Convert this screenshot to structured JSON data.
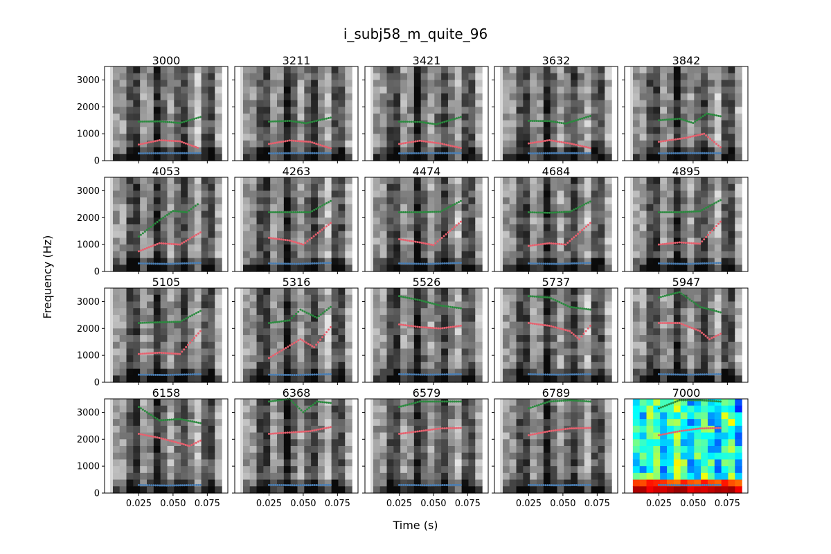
{
  "figure": {
    "title": "i_subj58_m_quite_96",
    "xlabel": "Time (s)",
    "ylabel": "Frequency (Hz)"
  },
  "chart_data": {
    "type": "scatter",
    "description_of_axes": "shared",
    "xlim": [
      0.0,
      0.09
    ],
    "ylim": [
      0,
      3500
    ],
    "xticks": [
      "0.025",
      "0.050",
      "0.075"
    ],
    "yticks": [
      "0",
      "1000",
      "2000",
      "3000"
    ],
    "series_colors": {
      "F1": "#4a7fb5",
      "F2": "#e8606e",
      "F3": "#2a8a3e"
    },
    "background_colormap_last_panel": "jet",
    "panels": [
      {
        "title": "3000",
        "F1": [
          [
            0.025,
            270
          ],
          [
            0.045,
            280
          ],
          [
            0.07,
            280
          ]
        ],
        "F2": [
          [
            0.025,
            600
          ],
          [
            0.04,
            760
          ],
          [
            0.055,
            720
          ],
          [
            0.068,
            480
          ]
        ],
        "F3": [
          [
            0.025,
            1450
          ],
          [
            0.04,
            1460
          ],
          [
            0.055,
            1400
          ],
          [
            0.07,
            1620
          ]
        ]
      },
      {
        "title": "3211",
        "F1": [
          [
            0.025,
            270
          ],
          [
            0.045,
            280
          ],
          [
            0.07,
            280
          ]
        ],
        "F2": [
          [
            0.025,
            620
          ],
          [
            0.04,
            750
          ],
          [
            0.055,
            700
          ],
          [
            0.07,
            460
          ]
        ],
        "F3": [
          [
            0.025,
            1450
          ],
          [
            0.04,
            1480
          ],
          [
            0.052,
            1390
          ],
          [
            0.07,
            1600
          ]
        ]
      },
      {
        "title": "3421",
        "F1": [
          [
            0.025,
            270
          ],
          [
            0.045,
            280
          ],
          [
            0.07,
            280
          ]
        ],
        "F2": [
          [
            0.025,
            620
          ],
          [
            0.04,
            740
          ],
          [
            0.055,
            640
          ],
          [
            0.07,
            470
          ]
        ],
        "F3": [
          [
            0.025,
            1450
          ],
          [
            0.04,
            1440
          ],
          [
            0.052,
            1350
          ],
          [
            0.07,
            1620
          ]
        ]
      },
      {
        "title": "3632",
        "F1": [
          [
            0.025,
            270
          ],
          [
            0.045,
            280
          ],
          [
            0.07,
            280
          ]
        ],
        "F2": [
          [
            0.025,
            640
          ],
          [
            0.04,
            760
          ],
          [
            0.055,
            640
          ],
          [
            0.07,
            470
          ]
        ],
        "F3": [
          [
            0.025,
            1480
          ],
          [
            0.04,
            1470
          ],
          [
            0.052,
            1380
          ],
          [
            0.07,
            1660
          ]
        ]
      },
      {
        "title": "3842",
        "F1": [
          [
            0.025,
            270
          ],
          [
            0.045,
            280
          ],
          [
            0.07,
            280
          ]
        ],
        "F2": [
          [
            0.025,
            700
          ],
          [
            0.045,
            850
          ],
          [
            0.058,
            1000
          ],
          [
            0.07,
            500
          ]
        ],
        "F3": [
          [
            0.025,
            1500
          ],
          [
            0.04,
            1560
          ],
          [
            0.05,
            1400
          ],
          [
            0.06,
            1750
          ],
          [
            0.07,
            1650
          ]
        ]
      },
      {
        "title": "4053",
        "F1": [
          [
            0.025,
            300
          ],
          [
            0.045,
            280
          ],
          [
            0.07,
            320
          ]
        ],
        "F2": [
          [
            0.025,
            750
          ],
          [
            0.04,
            1050
          ],
          [
            0.055,
            1000
          ],
          [
            0.07,
            1450
          ]
        ],
        "F3": [
          [
            0.025,
            1300
          ],
          [
            0.04,
            1900
          ],
          [
            0.05,
            2250
          ],
          [
            0.06,
            2200
          ],
          [
            0.068,
            2500
          ]
        ]
      },
      {
        "title": "4263",
        "F1": [
          [
            0.025,
            300
          ],
          [
            0.045,
            280
          ],
          [
            0.07,
            320
          ]
        ],
        "F2": [
          [
            0.025,
            1250
          ],
          [
            0.04,
            1150
          ],
          [
            0.05,
            1000
          ],
          [
            0.07,
            1800
          ]
        ],
        "F3": [
          [
            0.025,
            2200
          ],
          [
            0.04,
            2200
          ],
          [
            0.055,
            2200
          ],
          [
            0.07,
            2620
          ]
        ]
      },
      {
        "title": "4474",
        "F1": [
          [
            0.025,
            300
          ],
          [
            0.045,
            280
          ],
          [
            0.07,
            320
          ]
        ],
        "F2": [
          [
            0.025,
            1200
          ],
          [
            0.04,
            1080
          ],
          [
            0.05,
            980
          ],
          [
            0.07,
            1850
          ]
        ],
        "F3": [
          [
            0.025,
            2200
          ],
          [
            0.04,
            2200
          ],
          [
            0.055,
            2220
          ],
          [
            0.07,
            2620
          ]
        ]
      },
      {
        "title": "4684",
        "F1": [
          [
            0.025,
            300
          ],
          [
            0.045,
            280
          ],
          [
            0.07,
            320
          ]
        ],
        "F2": [
          [
            0.025,
            950
          ],
          [
            0.04,
            1050
          ],
          [
            0.052,
            1000
          ],
          [
            0.07,
            1800
          ]
        ],
        "F3": [
          [
            0.025,
            2200
          ],
          [
            0.04,
            2180
          ],
          [
            0.055,
            2220
          ],
          [
            0.07,
            2600
          ]
        ]
      },
      {
        "title": "4895",
        "F1": [
          [
            0.025,
            300
          ],
          [
            0.045,
            280
          ],
          [
            0.07,
            320
          ]
        ],
        "F2": [
          [
            0.025,
            1000
          ],
          [
            0.04,
            1080
          ],
          [
            0.055,
            1030
          ],
          [
            0.07,
            1850
          ]
        ],
        "F3": [
          [
            0.025,
            2200
          ],
          [
            0.04,
            2200
          ],
          [
            0.055,
            2240
          ],
          [
            0.07,
            2650
          ]
        ]
      },
      {
        "title": "5105",
        "F1": [
          [
            0.025,
            280
          ],
          [
            0.045,
            270
          ],
          [
            0.07,
            300
          ]
        ],
        "F2": [
          [
            0.025,
            1050
          ],
          [
            0.04,
            1100
          ],
          [
            0.055,
            1050
          ],
          [
            0.07,
            1900
          ]
        ],
        "F3": [
          [
            0.025,
            2200
          ],
          [
            0.04,
            2230
          ],
          [
            0.055,
            2250
          ],
          [
            0.07,
            2650
          ]
        ]
      },
      {
        "title": "5316",
        "F1": [
          [
            0.025,
            280
          ],
          [
            0.045,
            270
          ],
          [
            0.07,
            300
          ]
        ],
        "F2": [
          [
            0.025,
            900
          ],
          [
            0.048,
            1600
          ],
          [
            0.058,
            1300
          ],
          [
            0.07,
            2050
          ]
        ],
        "F3": [
          [
            0.025,
            2200
          ],
          [
            0.04,
            2300
          ],
          [
            0.048,
            2700
          ],
          [
            0.06,
            2400
          ],
          [
            0.07,
            2800
          ]
        ]
      },
      {
        "title": "5526",
        "F1": [
          [
            0.025,
            300
          ],
          [
            0.045,
            280
          ],
          [
            0.07,
            300
          ]
        ],
        "F2": [
          [
            0.025,
            2150
          ],
          [
            0.04,
            2050
          ],
          [
            0.055,
            2000
          ],
          [
            0.07,
            2100
          ]
        ],
        "F3": [
          [
            0.025,
            3200
          ],
          [
            0.04,
            3050
          ],
          [
            0.055,
            2850
          ],
          [
            0.07,
            2750
          ]
        ]
      },
      {
        "title": "5737",
        "F1": [
          [
            0.025,
            300
          ],
          [
            0.045,
            280
          ],
          [
            0.07,
            300
          ]
        ],
        "F2": [
          [
            0.025,
            2200
          ],
          [
            0.04,
            2100
          ],
          [
            0.055,
            1900
          ],
          [
            0.062,
            1600
          ],
          [
            0.07,
            2100
          ]
        ],
        "F3": [
          [
            0.025,
            3200
          ],
          [
            0.04,
            3150
          ],
          [
            0.055,
            2800
          ],
          [
            0.07,
            2700
          ]
        ]
      },
      {
        "title": "5947",
        "F1": [
          [
            0.025,
            300
          ],
          [
            0.045,
            280
          ],
          [
            0.07,
            300
          ]
        ],
        "F2": [
          [
            0.025,
            2200
          ],
          [
            0.04,
            2200
          ],
          [
            0.055,
            1900
          ],
          [
            0.062,
            1600
          ],
          [
            0.07,
            1800
          ]
        ],
        "F3": [
          [
            0.025,
            3150
          ],
          [
            0.04,
            3350
          ],
          [
            0.055,
            2800
          ],
          [
            0.07,
            2600
          ]
        ]
      },
      {
        "title": "6158",
        "F1": [
          [
            0.025,
            300
          ],
          [
            0.045,
            280
          ],
          [
            0.07,
            300
          ]
        ],
        "F2": [
          [
            0.025,
            2200
          ],
          [
            0.04,
            2050
          ],
          [
            0.055,
            1850
          ],
          [
            0.062,
            1750
          ],
          [
            0.07,
            1950
          ]
        ],
        "F3": [
          [
            0.025,
            3200
          ],
          [
            0.04,
            2700
          ],
          [
            0.055,
            2750
          ],
          [
            0.07,
            2600
          ]
        ]
      },
      {
        "title": "6368",
        "F1": [
          [
            0.025,
            300
          ],
          [
            0.045,
            290
          ],
          [
            0.07,
            300
          ]
        ],
        "F2": [
          [
            0.025,
            2200
          ],
          [
            0.04,
            2250
          ],
          [
            0.055,
            2300
          ],
          [
            0.07,
            2450
          ]
        ],
        "F3": [
          [
            0.025,
            3400
          ],
          [
            0.04,
            3500
          ],
          [
            0.05,
            3000
          ],
          [
            0.06,
            3400
          ],
          [
            0.07,
            3350
          ]
        ]
      },
      {
        "title": "6579",
        "F1": [
          [
            0.025,
            300
          ],
          [
            0.045,
            290
          ],
          [
            0.07,
            300
          ]
        ],
        "F2": [
          [
            0.025,
            2200
          ],
          [
            0.04,
            2300
          ],
          [
            0.055,
            2400
          ],
          [
            0.07,
            2420
          ]
        ],
        "F3": [
          [
            0.025,
            3200
          ],
          [
            0.04,
            3400
          ],
          [
            0.055,
            3400
          ],
          [
            0.07,
            3400
          ]
        ]
      },
      {
        "title": "6789",
        "F1": [
          [
            0.025,
            300
          ],
          [
            0.045,
            290
          ],
          [
            0.07,
            300
          ]
        ],
        "F2": [
          [
            0.025,
            2150
          ],
          [
            0.04,
            2300
          ],
          [
            0.055,
            2400
          ],
          [
            0.07,
            2420
          ]
        ],
        "F3": [
          [
            0.025,
            3150
          ],
          [
            0.04,
            3400
          ],
          [
            0.055,
            3450
          ],
          [
            0.07,
            3400
          ]
        ]
      },
      {
        "title": "7000",
        "F1": [
          [
            0.025,
            300
          ],
          [
            0.045,
            290
          ],
          [
            0.07,
            300
          ]
        ],
        "F2": [
          [
            0.025,
            2150
          ],
          [
            0.04,
            2300
          ],
          [
            0.055,
            2400
          ],
          [
            0.07,
            2420
          ]
        ],
        "F3": [
          [
            0.025,
            3150
          ],
          [
            0.04,
            3450
          ],
          [
            0.055,
            3450
          ],
          [
            0.07,
            3400
          ]
        ]
      }
    ]
  }
}
